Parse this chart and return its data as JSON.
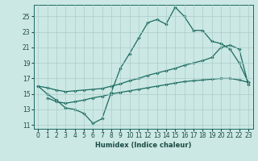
{
  "xlabel": "Humidex (Indice chaleur)",
  "bg_color": "#cce8e4",
  "line_color": "#1a6b60",
  "grid_color": "#aaccca",
  "xlim": [
    -0.5,
    23.5
  ],
  "ylim": [
    10.5,
    26.5
  ],
  "xticks": [
    0,
    1,
    2,
    3,
    4,
    5,
    6,
    7,
    8,
    9,
    10,
    11,
    12,
    13,
    14,
    15,
    16,
    17,
    18,
    19,
    20,
    21,
    22,
    23
  ],
  "yticks": [
    11,
    13,
    15,
    17,
    19,
    21,
    23,
    25
  ],
  "curve1_x": [
    0,
    1,
    2,
    3,
    4,
    5,
    6,
    7,
    8,
    9,
    10,
    11,
    12,
    13,
    14,
    15,
    16,
    17,
    18,
    19,
    20,
    21,
    22,
    23
  ],
  "curve1_y": [
    16.0,
    15.0,
    14.2,
    13.2,
    13.0,
    12.5,
    11.2,
    11.8,
    15.2,
    18.3,
    20.2,
    22.2,
    24.2,
    24.6,
    24.0,
    26.2,
    25.0,
    23.2,
    23.2,
    21.8,
    21.5,
    20.8,
    19.0,
    16.5
  ],
  "curve2_x": [
    0,
    1,
    2,
    3,
    4,
    5,
    6,
    7,
    8,
    9,
    10,
    11,
    12,
    13,
    14,
    15,
    16,
    17,
    18,
    19,
    20,
    21,
    22,
    23
  ],
  "curve2_y": [
    16.0,
    15.8,
    15.5,
    15.3,
    15.4,
    15.5,
    15.6,
    15.7,
    16.0,
    16.3,
    16.7,
    17.0,
    17.4,
    17.7,
    18.0,
    18.3,
    18.7,
    19.0,
    19.3,
    19.7,
    21.0,
    21.3,
    20.8,
    16.2
  ],
  "curve3_x": [
    1,
    2,
    3,
    4,
    5,
    6,
    7,
    8,
    9,
    10,
    11,
    12,
    13,
    14,
    15,
    16,
    17,
    18,
    19,
    20,
    21,
    22,
    23
  ],
  "curve3_y": [
    14.5,
    14.0,
    13.8,
    14.0,
    14.2,
    14.5,
    14.7,
    15.0,
    15.2,
    15.4,
    15.6,
    15.8,
    16.0,
    16.2,
    16.4,
    16.6,
    16.7,
    16.8,
    16.9,
    17.0,
    17.0,
    16.8,
    16.5
  ]
}
